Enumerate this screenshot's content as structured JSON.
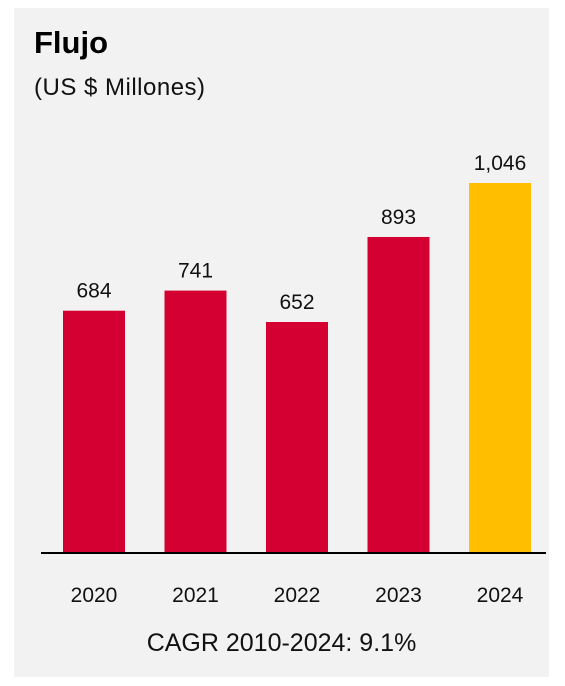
{
  "header": {
    "title": "Flujo",
    "subtitle": "(US $ Millones)"
  },
  "footer": {
    "note": "CAGR 2010-2024: 9.1%"
  },
  "colors": {
    "bar_default": "#d50032",
    "bar_highlight": "#ffbf00",
    "axis": "#000000",
    "panel": "#f2f2f2"
  },
  "chart_data": {
    "type": "bar",
    "categories": [
      "2020",
      "2021",
      "2022",
      "2023",
      "2024"
    ],
    "values": [
      684,
      741,
      652,
      893,
      1046
    ],
    "value_labels": [
      "684",
      "741",
      "652",
      "893",
      "1,046"
    ],
    "highlight_index": 4,
    "title": "Flujo",
    "subtitle": "(US $ Millones)",
    "xlabel": "",
    "ylabel": "",
    "ylim": [
      0,
      1046
    ],
    "grid": false,
    "legend": "none"
  }
}
